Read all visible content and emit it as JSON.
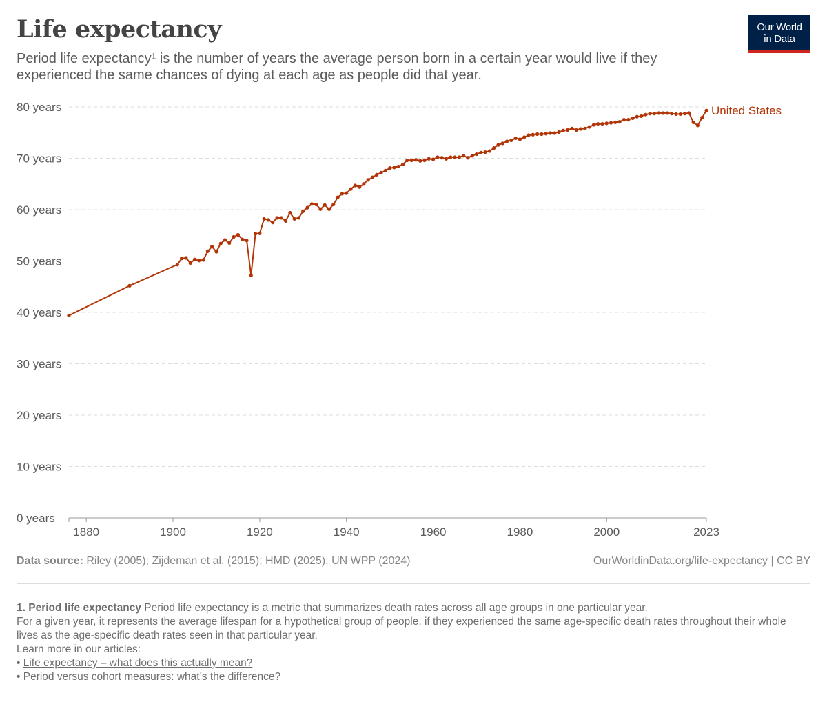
{
  "header": {
    "title": "Life expectancy",
    "subtitle": "Period life expectancy¹ is the number of years the average person born in a certain year would live if they experienced the same chances of dying at each age as people did that year.",
    "logo_line1": "Our World",
    "logo_line2": "in Data"
  },
  "footer": {
    "source_label": "Data source:",
    "source_text": "Riley (2005); Zijdeman et al. (2015); HMD (2025); UN WPP (2024)",
    "credit": "OurWorldinData.org/life-expectancy | CC BY"
  },
  "footnote": {
    "number_title": "1. Period life expectancy",
    "line1": "Period life expectancy is a metric that summarizes death rates across all age groups in one particular year.",
    "line2": "For a given year, it represents the average lifespan for a hypothetical group of people, if they experienced the same age-specific death rates throughout their whole lives as the age-specific death rates seen in that particular year.",
    "learn_more": "Learn more in our articles:",
    "link1": "Life expectancy – what does this actually mean?",
    "link2": "Period versus cohort measures: what’s the difference?"
  },
  "colors": {
    "series": "#b13507",
    "grid": "#dddddd",
    "axis": "#5b5b5b"
  },
  "chart_data": {
    "type": "line",
    "xlim": [
      1876,
      2023
    ],
    "ylim": [
      0,
      80
    ],
    "x_ticks": [
      1880,
      1900,
      1920,
      1940,
      1960,
      1980,
      2000,
      2023
    ],
    "y_ticks": [
      0,
      10,
      20,
      30,
      40,
      50,
      60,
      70,
      80
    ],
    "y_tick_labels": [
      "0 years",
      "10 years",
      "20 years",
      "30 years",
      "40 years",
      "50 years",
      "60 years",
      "70 years",
      "80 years"
    ],
    "grid": "horizontal dashed",
    "series": [
      {
        "name": "United States",
        "x": [
          1876,
          1890,
          1901,
          1902,
          1903,
          1904,
          1905,
          1906,
          1907,
          1908,
          1909,
          1910,
          1911,
          1912,
          1913,
          1914,
          1915,
          1916,
          1917,
          1918,
          1919,
          1920,
          1921,
          1922,
          1923,
          1924,
          1925,
          1926,
          1927,
          1928,
          1929,
          1930,
          1931,
          1932,
          1933,
          1934,
          1935,
          1936,
          1937,
          1938,
          1939,
          1940,
          1941,
          1942,
          1943,
          1944,
          1945,
          1946,
          1947,
          1948,
          1949,
          1950,
          1951,
          1952,
          1953,
          1954,
          1955,
          1956,
          1957,
          1958,
          1959,
          1960,
          1961,
          1962,
          1963,
          1964,
          1965,
          1966,
          1967,
          1968,
          1969,
          1970,
          1971,
          1972,
          1973,
          1974,
          1975,
          1976,
          1977,
          1978,
          1979,
          1980,
          1981,
          1982,
          1983,
          1984,
          1985,
          1986,
          1987,
          1988,
          1989,
          1990,
          1991,
          1992,
          1993,
          1994,
          1995,
          1996,
          1997,
          1998,
          1999,
          2000,
          2001,
          2002,
          2003,
          2004,
          2005,
          2006,
          2007,
          2008,
          2009,
          2010,
          2011,
          2012,
          2013,
          2014,
          2015,
          2016,
          2017,
          2018,
          2019,
          2020,
          2021,
          2022,
          2023
        ],
        "values": [
          39.4,
          45.2,
          49.3,
          50.5,
          50.6,
          49.6,
          50.3,
          50.1,
          50.2,
          51.9,
          52.8,
          51.8,
          53.4,
          54.1,
          53.5,
          54.7,
          55.1,
          54.2,
          54.0,
          47.2,
          55.3,
          55.4,
          58.2,
          58.0,
          57.5,
          58.4,
          58.4,
          57.8,
          59.4,
          58.2,
          58.4,
          59.7,
          60.4,
          61.1,
          61.0,
          60.1,
          60.9,
          60.1,
          61.0,
          62.4,
          63.1,
          63.2,
          64.0,
          64.7,
          64.4,
          65.0,
          65.8,
          66.3,
          66.8,
          67.2,
          67.6,
          68.1,
          68.2,
          68.4,
          68.8,
          69.6,
          69.6,
          69.7,
          69.5,
          69.6,
          69.9,
          69.8,
          70.2,
          70.1,
          69.9,
          70.2,
          70.2,
          70.2,
          70.5,
          70.1,
          70.5,
          70.8,
          71.1,
          71.2,
          71.4,
          72.0,
          72.6,
          72.9,
          73.3,
          73.5,
          73.9,
          73.7,
          74.1,
          74.5,
          74.6,
          74.7,
          74.7,
          74.8,
          74.9,
          74.9,
          75.1,
          75.4,
          75.5,
          75.8,
          75.5,
          75.7,
          75.8,
          76.1,
          76.5,
          76.7,
          76.7,
          76.8,
          76.9,
          77.0,
          77.1,
          77.5,
          77.5,
          77.8,
          78.1,
          78.2,
          78.5,
          78.7,
          78.7,
          78.8,
          78.8,
          78.8,
          78.7,
          78.6,
          78.6,
          78.7,
          78.8,
          77.0,
          76.4,
          77.9,
          79.3
        ]
      }
    ]
  }
}
